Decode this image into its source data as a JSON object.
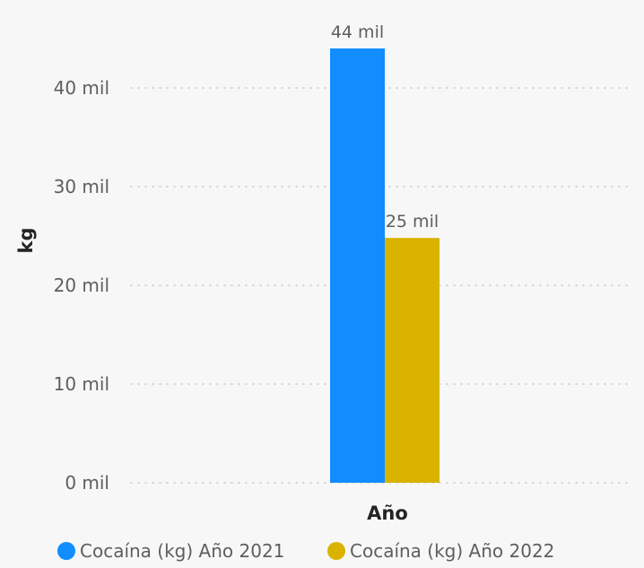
{
  "chart_data": {
    "type": "bar",
    "ylabel": "kg",
    "xlabel": "Año",
    "categories": [
      ""
    ],
    "ylim": [
      0,
      48000
    ],
    "yticks": [
      0,
      10000,
      20000,
      30000,
      40000
    ],
    "ytick_labels": [
      "0 mil",
      "10 mil",
      "20 mil",
      "30 mil",
      "40 mil"
    ],
    "grid": true,
    "legend_position": "bottom",
    "series": [
      {
        "name": "Cocaína (kg) Año 2021",
        "values": [
          44000
        ],
        "data_labels": [
          "44 mil"
        ],
        "color": "#118dff"
      },
      {
        "name": "Cocaína (kg) Año 2022",
        "values": [
          24800
        ],
        "data_labels": [
          "25 mil"
        ],
        "color": "#d9b300"
      }
    ]
  }
}
